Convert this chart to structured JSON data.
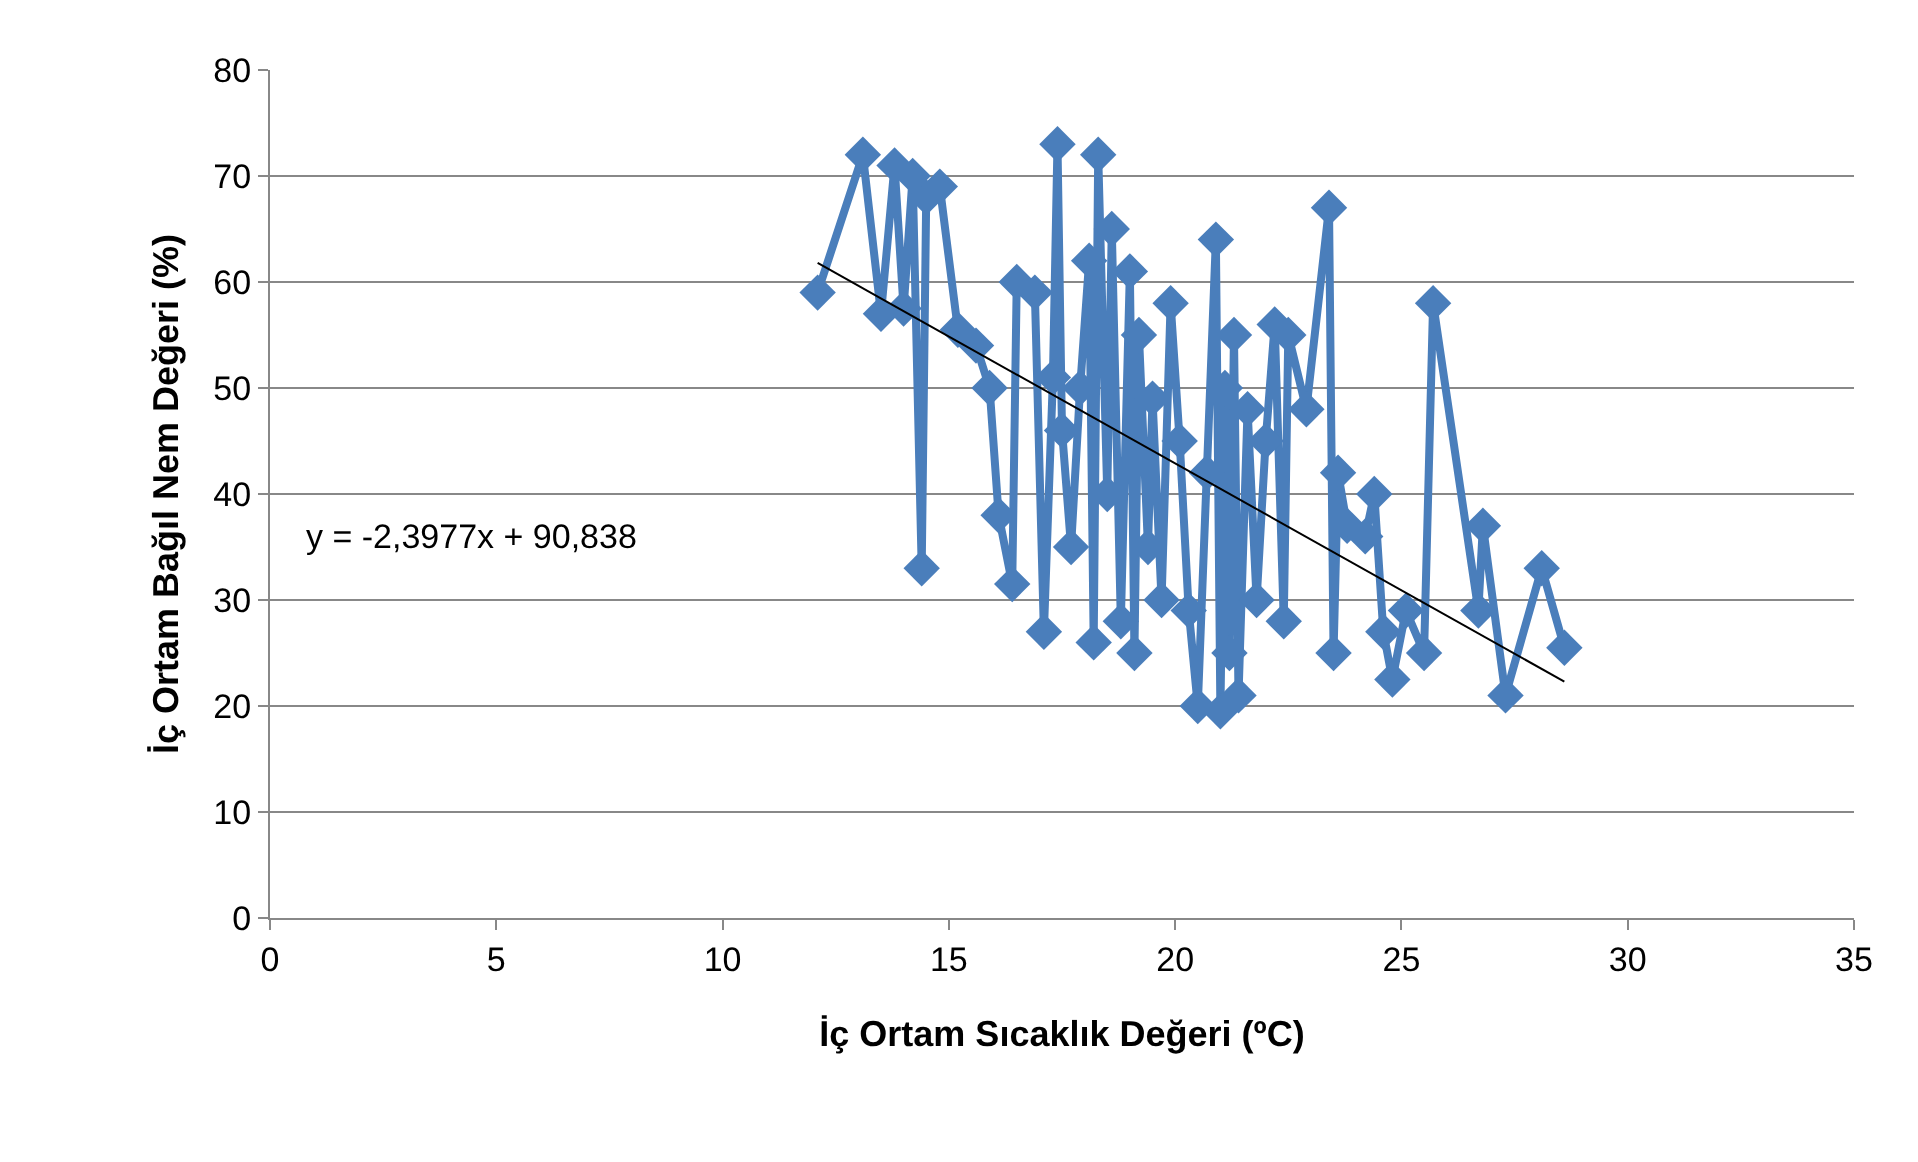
{
  "chart_data": {
    "type": "line",
    "xlabel": "İç Ortam Sıcaklık Değeri (ºC)",
    "ylabel": "İç Ortam Bağıl Nem Değeri (%)",
    "xlim": [
      0,
      35
    ],
    "xticks": [
      0,
      5,
      10,
      15,
      20,
      25,
      30,
      35
    ],
    "ylim": [
      0,
      80
    ],
    "yticks": [
      0,
      10,
      20,
      30,
      40,
      50,
      60,
      70,
      80
    ],
    "grid": "y",
    "annotations": [
      "y = -2,3977x + 90,838"
    ],
    "series": [
      {
        "type": "line",
        "color": "#4a7ebb",
        "marker": "diamond",
        "line_style": "solid",
        "x": [
          12.1,
          13.1,
          13.5,
          13.8,
          14.0,
          14.2,
          14.4,
          14.5,
          14.8,
          15.2,
          15.6,
          15.9,
          16.1,
          16.4,
          16.5,
          16.9,
          17.1,
          17.3,
          17.4,
          17.5,
          17.7,
          17.9,
          18.1,
          18.2,
          18.3,
          18.5,
          18.6,
          18.8,
          19.0,
          19.1,
          19.2,
          19.4,
          19.5,
          19.7,
          19.9,
          20.1,
          20.3,
          20.5,
          20.7,
          20.9,
          21.0,
          21.1,
          21.2,
          21.3,
          21.4,
          21.6,
          21.8,
          22.0,
          22.2,
          22.4,
          22.5,
          22.9,
          23.4,
          23.5,
          23.6,
          23.8,
          24.2,
          24.4,
          24.6,
          24.8,
          25.1,
          25.5,
          25.7,
          26.7,
          26.8,
          27.3,
          28.1,
          28.6
        ],
        "values": [
          59,
          72,
          57,
          71,
          57.5,
          70,
          33,
          68,
          69,
          55.5,
          54,
          50,
          38,
          31.5,
          60,
          59,
          27,
          51,
          73,
          46,
          35,
          50,
          62,
          26,
          72,
          40,
          65,
          28,
          61,
          25,
          55,
          35,
          49,
          30,
          58,
          45,
          29,
          20,
          42,
          64,
          19.5,
          50,
          25,
          55,
          21,
          48,
          30,
          45,
          56,
          28,
          55,
          48,
          67,
          25,
          42,
          37,
          36,
          40,
          27,
          22.5,
          29,
          25,
          58,
          29,
          37,
          21,
          33,
          25.5
        ]
      },
      {
        "type": "line",
        "color": "#000000",
        "marker": "none",
        "line_style": "solid",
        "x": [
          12.1,
          28.6
        ],
        "values": [
          61.8,
          22.3
        ]
      }
    ]
  }
}
